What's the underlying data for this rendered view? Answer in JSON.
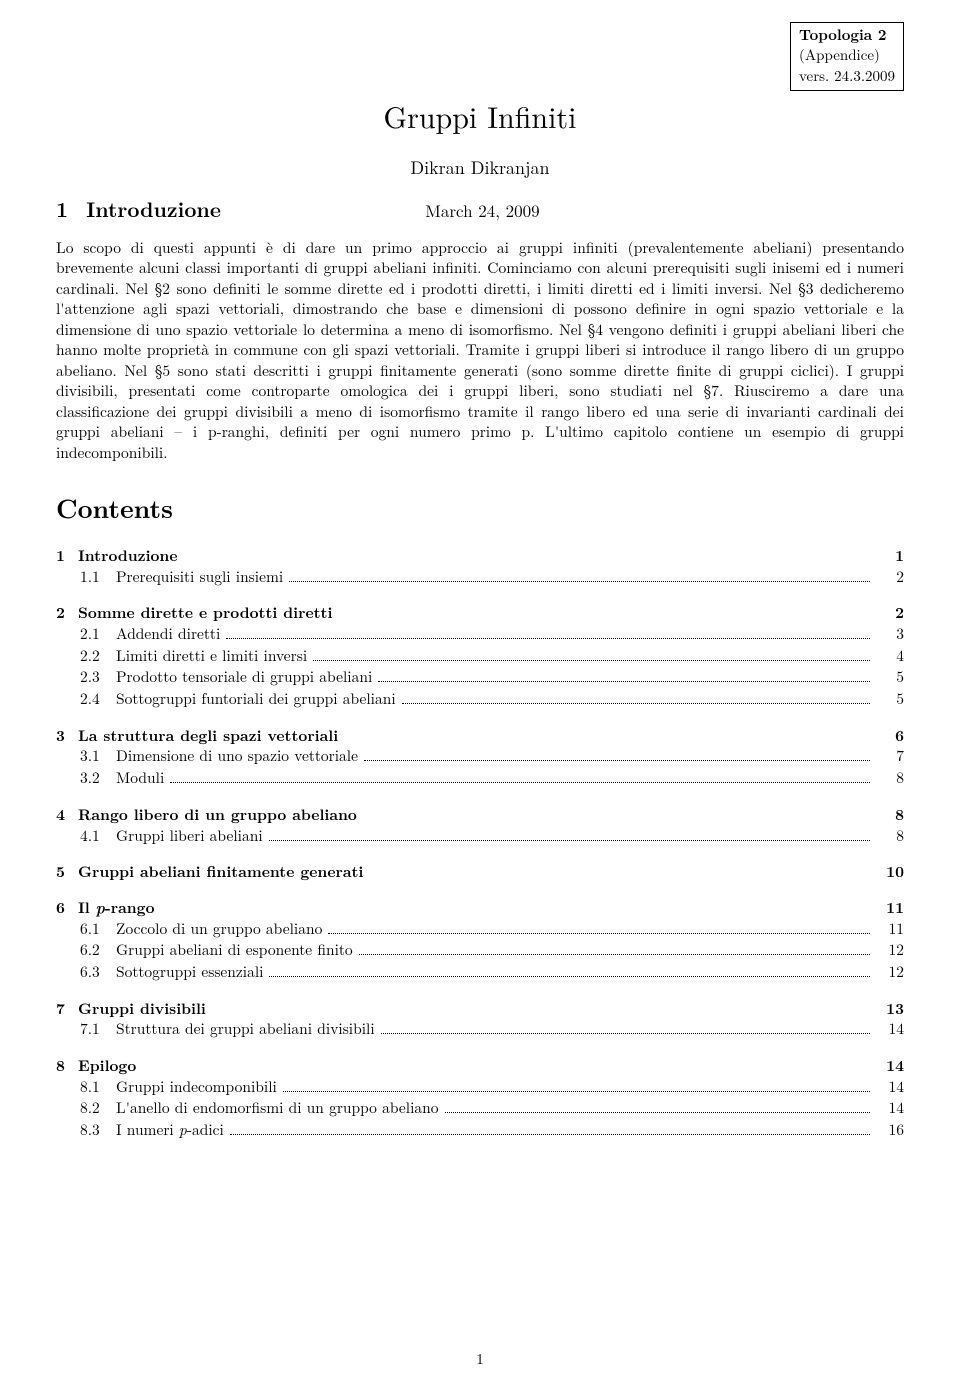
{
  "header_box": {
    "line1": "Topologia 2",
    "line2": "(Appendice)",
    "line3": "vers. 24.3.2009"
  },
  "title": "Gruppi Infiniti",
  "author": "Dikran Dikranjan",
  "date": "March 24, 2009",
  "section1": {
    "num": "1",
    "title": "Introduzione"
  },
  "intro_paragraph": "Lo scopo di questi appunti è di dare un primo approccio ai gruppi infiniti (prevalentemente abeliani) presentando brevemente alcuni classi importanti di gruppi abeliani infiniti. Cominciamo con alcuni prerequisiti sugli inisemi ed i numeri cardinali. Nel §2 sono definiti le somme dirette ed i prodotti diretti, i limiti diretti ed i limiti inversi. Nel §3 dedicheremo l'attenzione agli spazi vettoriali, dimostrando che base e dimensioni di possono definire in ogni spazio vettoriale e la dimensione di uno spazio vettoriale lo determina a meno di isomorfismo. Nel §4 vengono definiti i gruppi abeliani liberi che hanno molte proprietà in commune con gli spazi vettoriali. Tramite i gruppi liberi si introduce il rango libero di un gruppo abeliano. Nel §5 sono stati descritti i gruppi finitamente generati (sono somme dirette finite di gruppi ciclici). I gruppi divisibili, presentati come controparte omologica dei i gruppi liberi, sono studiati nel §7. Riusciremo a dare una classificazione dei gruppi divisibili a meno di isomorfismo tramite il rango libero ed una serie di invarianti cardinali dei gruppi abeliani – i p-ranghi, definiti per ogni numero primo p. L'ultimo capitolo contiene un esempio di gruppi indecomponibili.",
  "contents_title": "Contents",
  "toc": [
    {
      "num": "1",
      "title": "Introduzione",
      "page": "1",
      "subs": [
        {
          "num": "1.1",
          "title": "Prerequisiti sugli insiemi",
          "page": "2"
        }
      ]
    },
    {
      "num": "2",
      "title": "Somme dirette e prodotti diretti",
      "page": "2",
      "subs": [
        {
          "num": "2.1",
          "title": "Addendi diretti",
          "page": "3"
        },
        {
          "num": "2.2",
          "title": "Limiti diretti e limiti inversi",
          "page": "4"
        },
        {
          "num": "2.3",
          "title": "Prodotto tensoriale di gruppi abeliani",
          "page": "5"
        },
        {
          "num": "2.4",
          "title": "Sottogruppi funtoriali dei gruppi abeliani",
          "page": "5"
        }
      ]
    },
    {
      "num": "3",
      "title": "La struttura degli spazi vettoriali",
      "page": "6",
      "subs": [
        {
          "num": "3.1",
          "title": "Dimensione di uno spazio vettoriale",
          "page": "7"
        },
        {
          "num": "3.2",
          "title": "Moduli",
          "page": "8"
        }
      ]
    },
    {
      "num": "4",
      "title": "Rango libero di un gruppo abeliano",
      "page": "8",
      "subs": [
        {
          "num": "4.1",
          "title": "Gruppi liberi abeliani",
          "page": "8"
        }
      ]
    },
    {
      "num": "5",
      "title": "Gruppi abeliani finitamente generati",
      "page": "10",
      "subs": []
    },
    {
      "num": "6",
      "title_html": "Il <span class=\"italic\">p</span>-rango",
      "title": "Il p-rango",
      "page": "11",
      "subs": [
        {
          "num": "6.1",
          "title": "Zoccolo di un gruppo abeliano",
          "page": "11"
        },
        {
          "num": "6.2",
          "title": "Gruppi abeliani di esponente finito",
          "page": "12"
        },
        {
          "num": "6.3",
          "title": "Sottogruppi essenziali",
          "page": "12"
        }
      ]
    },
    {
      "num": "7",
      "title": "Gruppi divisibili",
      "page": "13",
      "subs": [
        {
          "num": "7.1",
          "title": "Struttura dei gruppi abeliani divisibili",
          "page": "14"
        }
      ]
    },
    {
      "num": "8",
      "title": "Epilogo",
      "page": "14",
      "subs": [
        {
          "num": "8.1",
          "title": "Gruppi indecomponibili",
          "page": "14"
        },
        {
          "num": "8.2",
          "title": "L'anello di endomorfismi di un gruppo abeliano",
          "page": "14"
        },
        {
          "num": "8.3",
          "title_html": "I numeri <span class=\"italic\">p</span>-adici",
          "title": "I numeri p-adici",
          "page": "16"
        }
      ]
    }
  ],
  "footer_page": "1"
}
